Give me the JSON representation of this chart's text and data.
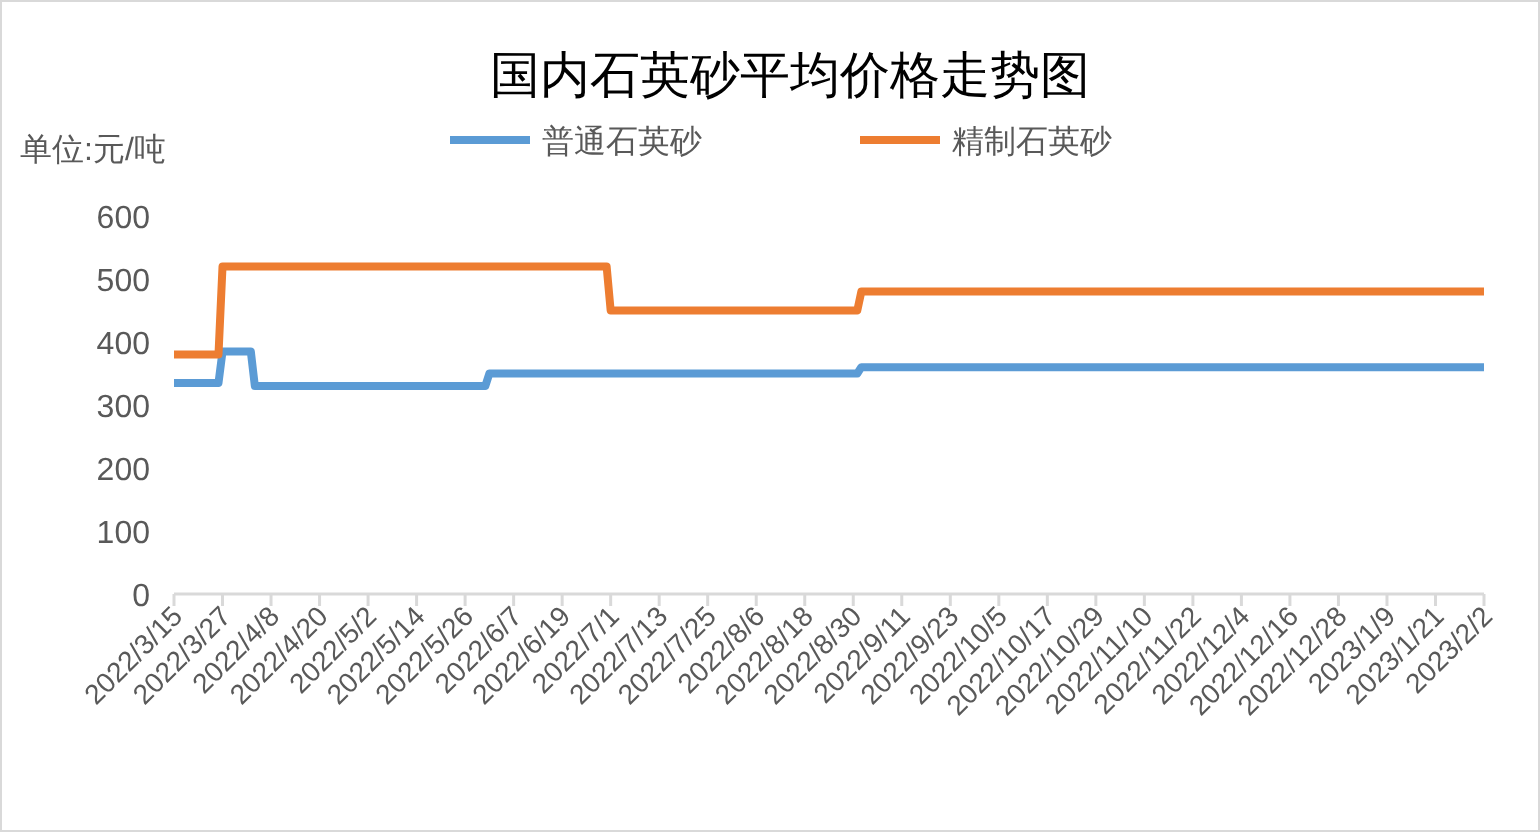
{
  "chart_data": {
    "type": "line",
    "title": "国内石英砂平均价格走势图",
    "ylabel": "单位:元/吨",
    "legend": "top",
    "grid": false,
    "marker": "none",
    "line_style": "solid",
    "xlim": [
      "2022-03-15",
      "2023-02-02"
    ],
    "ylim": [
      0,
      600
    ],
    "yticks": [
      0,
      100,
      200,
      300,
      400,
      500,
      600
    ],
    "xticks": [
      {
        "value": "2022-03-15",
        "label": "2022/3/15"
      },
      {
        "value": "2022-03-27",
        "label": "2022/3/27"
      },
      {
        "value": "2022-04-08",
        "label": "2022/4/8"
      },
      {
        "value": "2022-04-20",
        "label": "2022/4/20"
      },
      {
        "value": "2022-05-02",
        "label": "2022/5/2"
      },
      {
        "value": "2022-05-14",
        "label": "2022/5/14"
      },
      {
        "value": "2022-05-26",
        "label": "2022/5/26"
      },
      {
        "value": "2022-06-07",
        "label": "2022/6/7"
      },
      {
        "value": "2022-06-19",
        "label": "2022/6/19"
      },
      {
        "value": "2022-07-01",
        "label": "2022/7/1"
      },
      {
        "value": "2022-07-13",
        "label": "2022/7/13"
      },
      {
        "value": "2022-07-25",
        "label": "2022/7/25"
      },
      {
        "value": "2022-08-06",
        "label": "2022/8/6"
      },
      {
        "value": "2022-08-18",
        "label": "2022/8/18"
      },
      {
        "value": "2022-08-30",
        "label": "2022/8/30"
      },
      {
        "value": "2022-09-11",
        "label": "2022/9/11"
      },
      {
        "value": "2022-09-23",
        "label": "2022/9/23"
      },
      {
        "value": "2022-10-05",
        "label": "2022/10/5"
      },
      {
        "value": "2022-10-17",
        "label": "2022/10/17"
      },
      {
        "value": "2022-10-29",
        "label": "2022/10/29"
      },
      {
        "value": "2022-11-10",
        "label": "2022/11/10"
      },
      {
        "value": "2022-11-22",
        "label": "2022/11/22"
      },
      {
        "value": "2022-12-04",
        "label": "2022/12/4"
      },
      {
        "value": "2022-12-16",
        "label": "2022/12/16"
      },
      {
        "value": "2022-12-28",
        "label": "2022/12/28"
      },
      {
        "value": "2023-01-09",
        "label": "2023/1/9"
      },
      {
        "value": "2023-01-21",
        "label": "2023/1/21"
      },
      {
        "value": "2023-02-02",
        "label": "2023/2/2"
      }
    ],
    "series": [
      {
        "name": "普通石英砂",
        "color": "#5b9bd5",
        "x": [
          "2022-03-15",
          "2022-03-26",
          "2022-03-27",
          "2022-04-03",
          "2022-04-04",
          "2022-05-31",
          "2022-06-01",
          "2022-08-31",
          "2022-09-01",
          "2023-02-02"
        ],
        "values": [
          335,
          335,
          385,
          385,
          330,
          330,
          350,
          350,
          360,
          360
        ]
      },
      {
        "name": "精制石英砂",
        "color": "#ed7d31",
        "x": [
          "2022-03-15",
          "2022-03-26",
          "2022-03-27",
          "2022-06-30",
          "2022-07-01",
          "2022-08-31",
          "2022-09-01",
          "2023-02-02"
        ],
        "values": [
          380,
          380,
          520,
          520,
          450,
          450,
          480,
          480
        ]
      }
    ]
  }
}
